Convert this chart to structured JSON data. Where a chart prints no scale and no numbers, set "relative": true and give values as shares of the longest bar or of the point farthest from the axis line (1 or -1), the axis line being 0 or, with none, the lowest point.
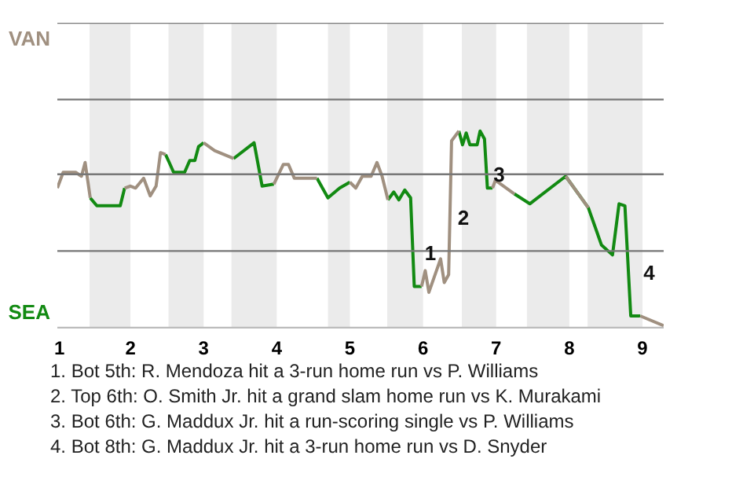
{
  "chart_data": {
    "type": "line",
    "relative": true,
    "x": [
      1.0,
      1.08,
      1.25,
      1.33,
      1.38,
      1.45,
      1.54,
      1.86,
      1.92,
      2.0,
      2.07,
      2.18,
      2.27,
      2.35,
      2.41,
      2.48,
      2.53,
      2.59,
      2.74,
      2.81,
      2.88,
      2.93,
      3.0,
      3.15,
      3.41,
      3.69,
      3.8,
      3.96,
      4.09,
      4.16,
      4.24,
      4.55,
      4.7,
      4.86,
      5.0,
      5.08,
      5.17,
      5.29,
      5.37,
      5.44,
      5.52,
      5.6,
      5.67,
      5.75,
      5.83,
      5.88,
      5.98,
      6.03,
      6.08,
      6.24,
      6.29,
      6.35,
      6.38,
      6.39,
      6.49,
      6.54,
      6.59,
      6.64,
      6.74,
      6.78,
      6.84,
      6.88,
      6.95,
      6.99,
      7.25,
      7.46,
      7.95,
      8.26,
      8.44,
      8.59,
      8.68,
      8.76,
      8.84,
      8.97,
      9.29
    ],
    "series": [
      {
        "color": "#128a12",
        "values": [
          null,
          null,
          null,
          null,
          null,
          0.66,
          0.62,
          0.62,
          0.71,
          null,
          null,
          null,
          null,
          null,
          null,
          0.88,
          0.84,
          0.79,
          0.79,
          0.85,
          0.85,
          0.92,
          0.94,
          null,
          0.86,
          0.94,
          0.72,
          0.73,
          null,
          null,
          null,
          0.76,
          0.66,
          0.71,
          0.74,
          null,
          null,
          null,
          null,
          null,
          0.65,
          0.69,
          0.65,
          0.7,
          0.66,
          0.21,
          0.21,
          null,
          null,
          null,
          null,
          null,
          null,
          null,
          1,
          0.93,
          0.99,
          0.93,
          0.93,
          1,
          0.96,
          0.71,
          0.71,
          null,
          0.68,
          0.63,
          0.77,
          0.61,
          0.42,
          0.37,
          0.63,
          0.62,
          0.06,
          0.06,
          null
        ]
      },
      {
        "color": "#a09080",
        "values": [
          0.71,
          0.79,
          0.79,
          0.77,
          0.84,
          0.66,
          null,
          null,
          0.71,
          0.72,
          0.71,
          0.76,
          0.67,
          0.72,
          0.89,
          0.88,
          null,
          null,
          null,
          null,
          null,
          null,
          0.94,
          0.9,
          0.86,
          null,
          null,
          0.73,
          0.83,
          0.83,
          0.76,
          0.76,
          null,
          null,
          0.74,
          0.71,
          0.77,
          0.77,
          0.84,
          0.77,
          0.65,
          null,
          null,
          null,
          null,
          null,
          0.21,
          0.29,
          0.18,
          0.35,
          0.23,
          0.27,
          0.78,
          0.95,
          1,
          null,
          null,
          null,
          null,
          null,
          null,
          null,
          0.71,
          0.75,
          0.68,
          null,
          0.77,
          0.61,
          null,
          null,
          null,
          null,
          null,
          0.06,
          0.01
        ]
      }
    ],
    "xlim": [
      1,
      9.29
    ],
    "xticks": [
      1,
      2,
      3,
      4,
      5,
      6,
      7,
      8,
      9
    ],
    "ref_lines": [
      {
        "axis": "y",
        "value": 0,
        "label": "SEA"
      },
      {
        "axis": "y",
        "value": 0.39
      },
      {
        "axis": "y",
        "value": 0.78
      },
      {
        "axis": "y",
        "value": 1.16
      },
      {
        "axis": "y",
        "value": 1.55,
        "label": "VAN"
      }
    ],
    "bands": [
      {
        "axis": "x",
        "from": 1.44,
        "to": 2,
        "color": "#ebebeb"
      },
      {
        "axis": "x",
        "from": 2.52,
        "to": 3,
        "color": "#ebebeb"
      },
      {
        "axis": "x",
        "from": 3.38,
        "to": 4,
        "color": "#ebebeb"
      },
      {
        "axis": "x",
        "from": 4.7,
        "to": 5,
        "color": "#ebebeb"
      },
      {
        "axis": "x",
        "from": 5.51,
        "to": 6,
        "color": "#ebebeb"
      },
      {
        "axis": "x",
        "from": 6.53,
        "to": 7,
        "color": "#ebebeb"
      },
      {
        "axis": "x",
        "from": 7.42,
        "to": 8,
        "color": "#ebebeb"
      },
      {
        "axis": "x",
        "from": 8.25,
        "to": 9,
        "color": "#ebebeb"
      }
    ],
    "annotations": [
      {
        "text": "1",
        "x": 5.98,
        "y": 0.38
      },
      {
        "text": "2",
        "x": 6.43,
        "y": 0.56
      },
      {
        "text": "3",
        "x": 6.92,
        "y": 0.78
      },
      {
        "text": "4",
        "x": 8.97,
        "y": 0.28
      },
      "1. Bot 5th: R. Mendoza hit a 3-run home run vs P. Williams",
      "2. Top 6th: O. Smith Jr. hit a grand slam home run vs K. Murakami",
      "3. Bot 6th: G. Maddux Jr. hit a run-scoring single vs P. Williams",
      "4. Bot 8th: G. Maddux Jr. hit a 3-run home run vs D. Snyder"
    ]
  }
}
